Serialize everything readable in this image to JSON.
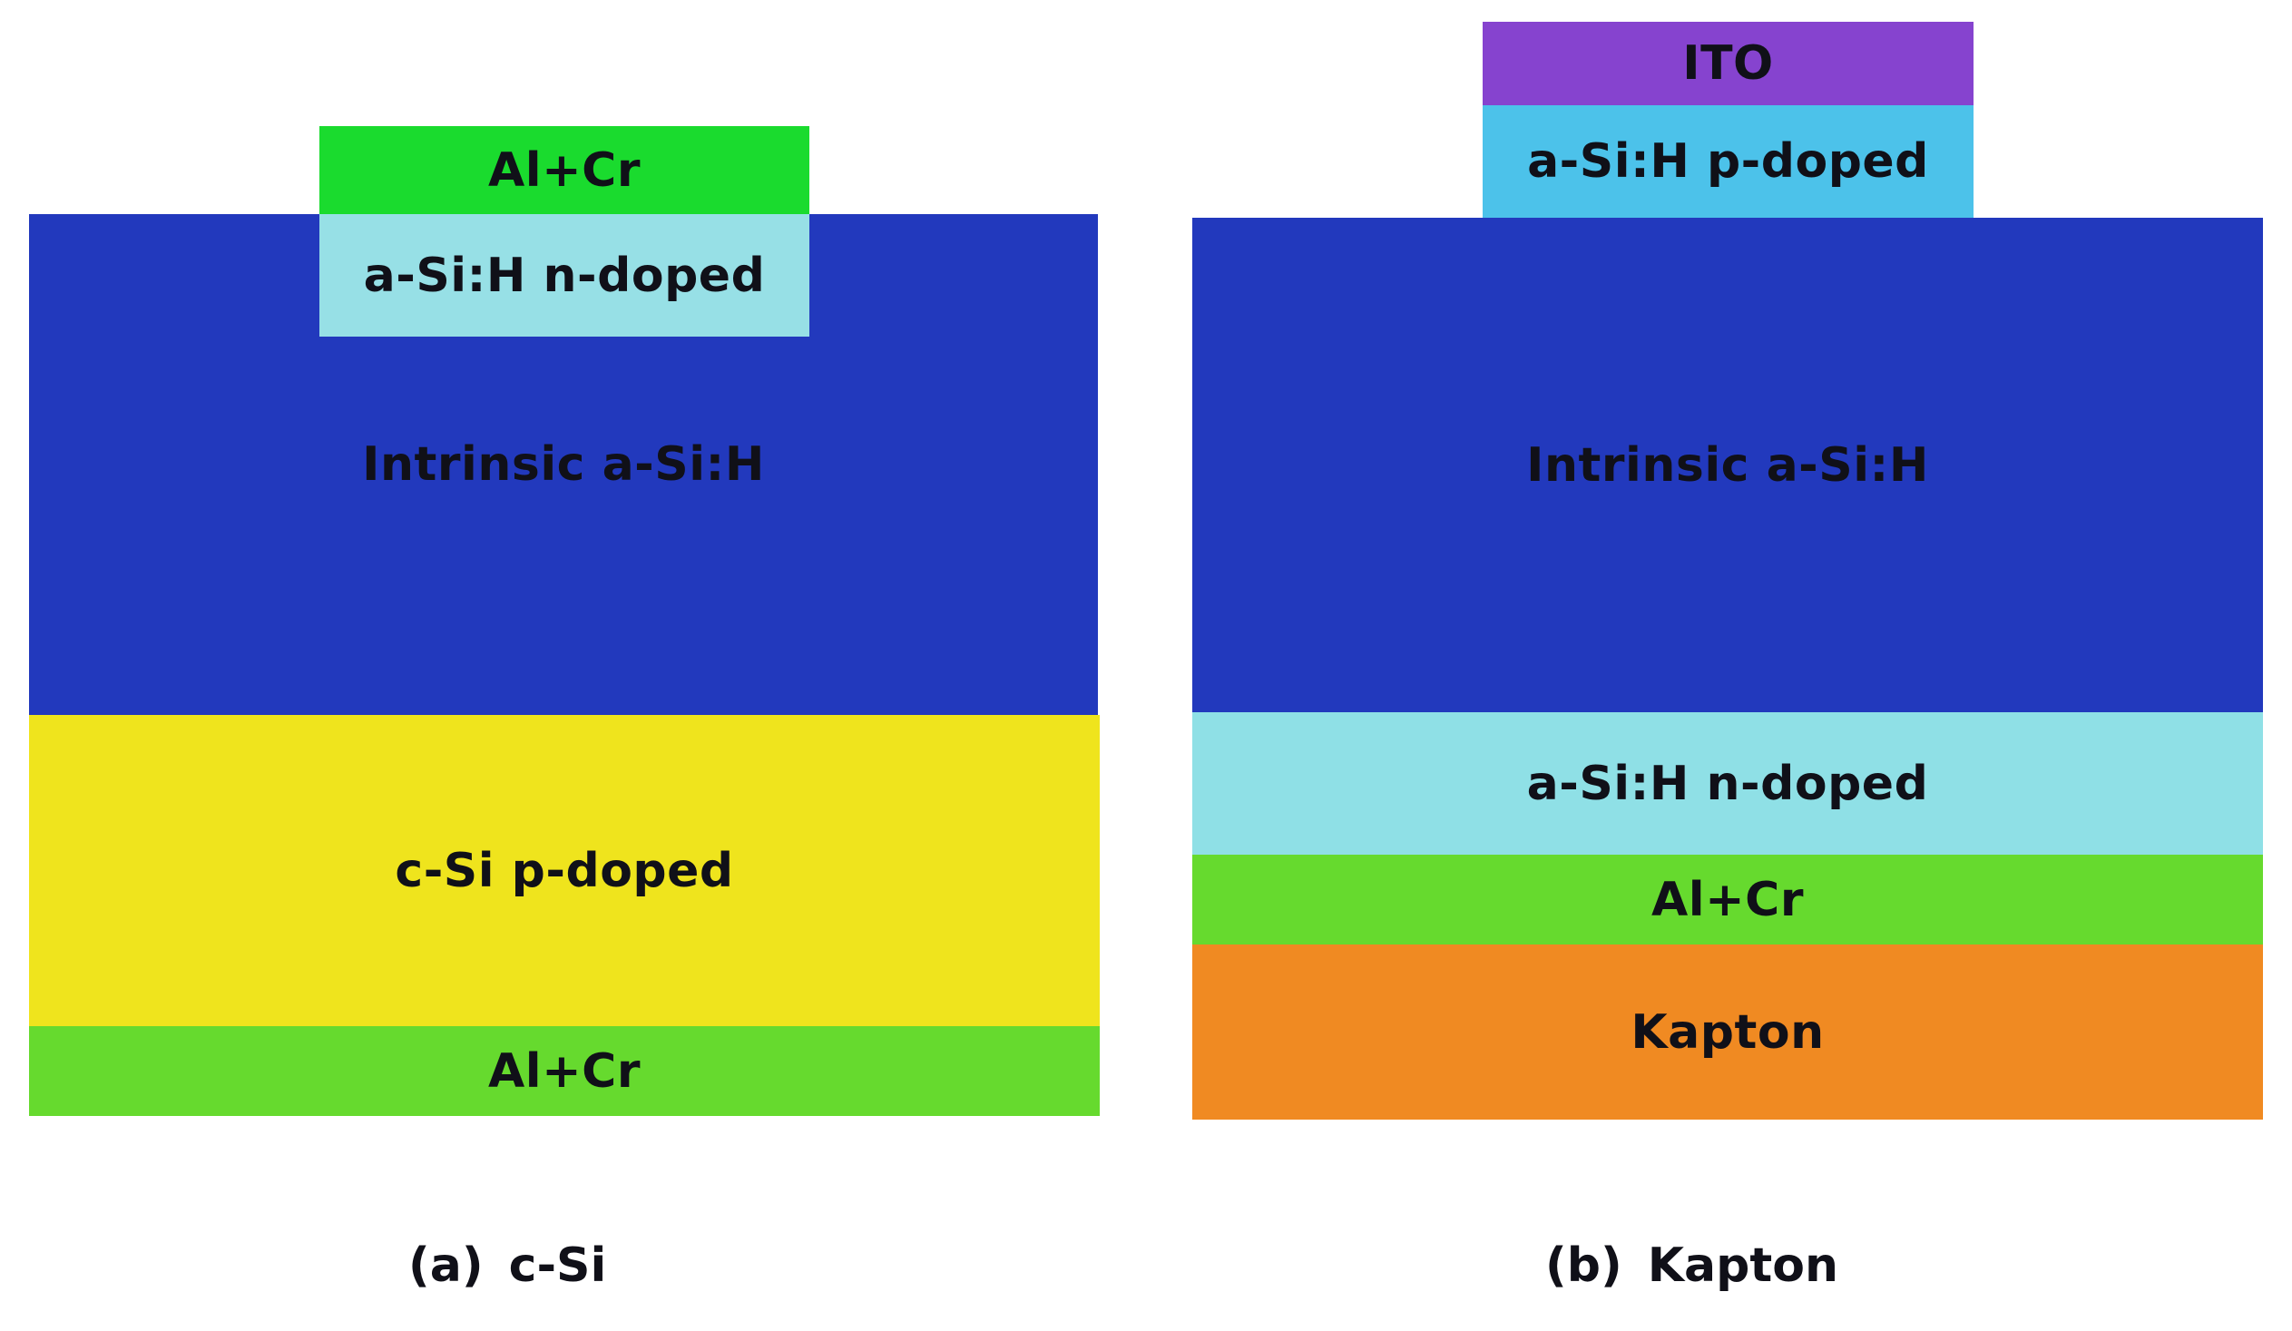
{
  "panel_a": {
    "layers": [
      {
        "label": "Al+Cr",
        "color": "#1adb2e"
      },
      {
        "label": "a-Si:H n-doped",
        "color": "#97e0e6"
      },
      {
        "label": "Intrinsic a-Si:H",
        "color": "#2239bd"
      },
      {
        "label": "c-Si p-doped",
        "color": "#efe41d"
      },
      {
        "label": "Al+Cr",
        "color": "#66da2e"
      }
    ],
    "caption_tag": "(a)",
    "caption_name": "c-Si"
  },
  "panel_b": {
    "layers": [
      {
        "label": "ITO",
        "color": "#8643cf"
      },
      {
        "label": "a-Si:H p-doped",
        "color": "#4cc2ea"
      },
      {
        "label": "Intrinsic a-Si:H",
        "color": "#2239bd"
      },
      {
        "label": "a-Si:H n-doped",
        "color": "#8fe0e6"
      },
      {
        "label": "Al+Cr",
        "color": "#66da2e"
      },
      {
        "label": "Kapton",
        "color": "#f08a22"
      }
    ],
    "caption_tag": "(b)",
    "caption_name": "Kapton"
  }
}
